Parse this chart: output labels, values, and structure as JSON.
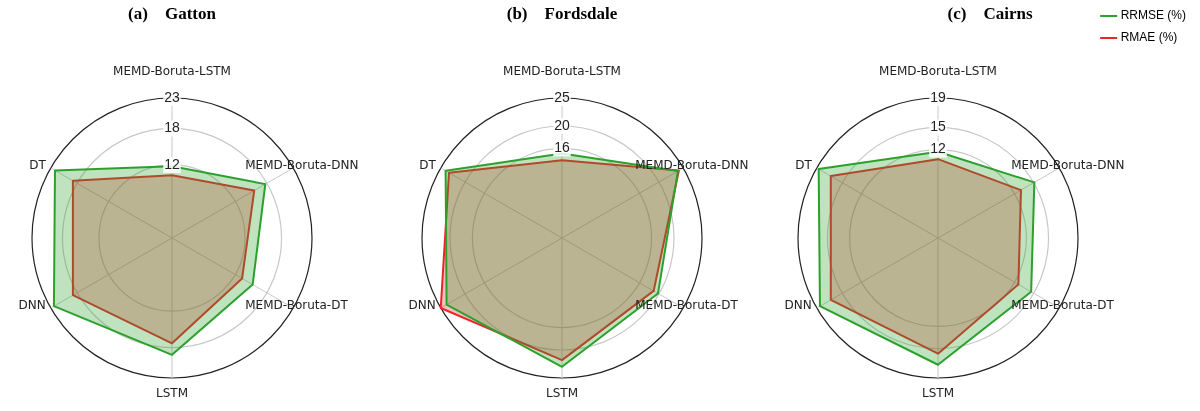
{
  "chart_data": [
    {
      "type": "radar",
      "title": "(a)    Gatton",
      "categories": [
        "MEMD-Boruta-LSTM",
        "MEMD-Boruta-DNN",
        "MEMD-Boruta-DT",
        "LSTM",
        "DNN",
        "DT"
      ],
      "ylim": [
        0,
        23
      ],
      "yticks": [
        12,
        18,
        23
      ],
      "grid": true,
      "legend": false,
      "series": [
        {
          "color": "#2ca02c",
          "values": [
            11.8,
            17.7,
            15.3,
            19.2,
            22.4,
            22.2
          ]
        },
        {
          "color": "#e8262a",
          "values": [
            10.3,
            15.6,
            13.3,
            17.3,
            18.8,
            18.8
          ]
        }
      ]
    },
    {
      "type": "radar",
      "title": "(b)    Fordsdale",
      "categories": [
        "MEMD-Boruta-LSTM",
        "MEMD-Boruta-DNN",
        "MEMD-Boruta-DT",
        "LSTM",
        "DNN",
        "DT"
      ],
      "ylim": [
        0,
        25
      ],
      "yticks": [
        16,
        20,
        25
      ],
      "grid": true,
      "legend": false,
      "series": [
        {
          "color": "#2ca02c",
          "values": [
            15.1,
            23.9,
            19.8,
            23.0,
            23.8,
            24.0
          ]
        },
        {
          "color": "#e8262a",
          "values": [
            13.9,
            24.1,
            18.9,
            21.8,
            25.0,
            23.3
          ]
        }
      ]
    },
    {
      "type": "radar",
      "title": "(c)    Cairns",
      "categories": [
        "MEMD-Boruta-LSTM",
        "MEMD-Boruta-DNN",
        "MEMD-Boruta-DT",
        "LSTM",
        "DNN",
        "DT"
      ],
      "ylim": [
        0,
        19
      ],
      "yticks": [
        12,
        15,
        19
      ],
      "grid": true,
      "legend": "top right",
      "series": [
        {
          "name": "RRMSE (%)",
          "color": "#2ca02c",
          "values": [
            11.7,
            15.1,
            14.6,
            17.2,
            18.5,
            18.7
          ]
        },
        {
          "name": "RMAE (%)",
          "color": "#e8262a",
          "values": [
            10.7,
            13.0,
            12.6,
            15.7,
            16.8,
            16.8
          ]
        }
      ]
    }
  ]
}
